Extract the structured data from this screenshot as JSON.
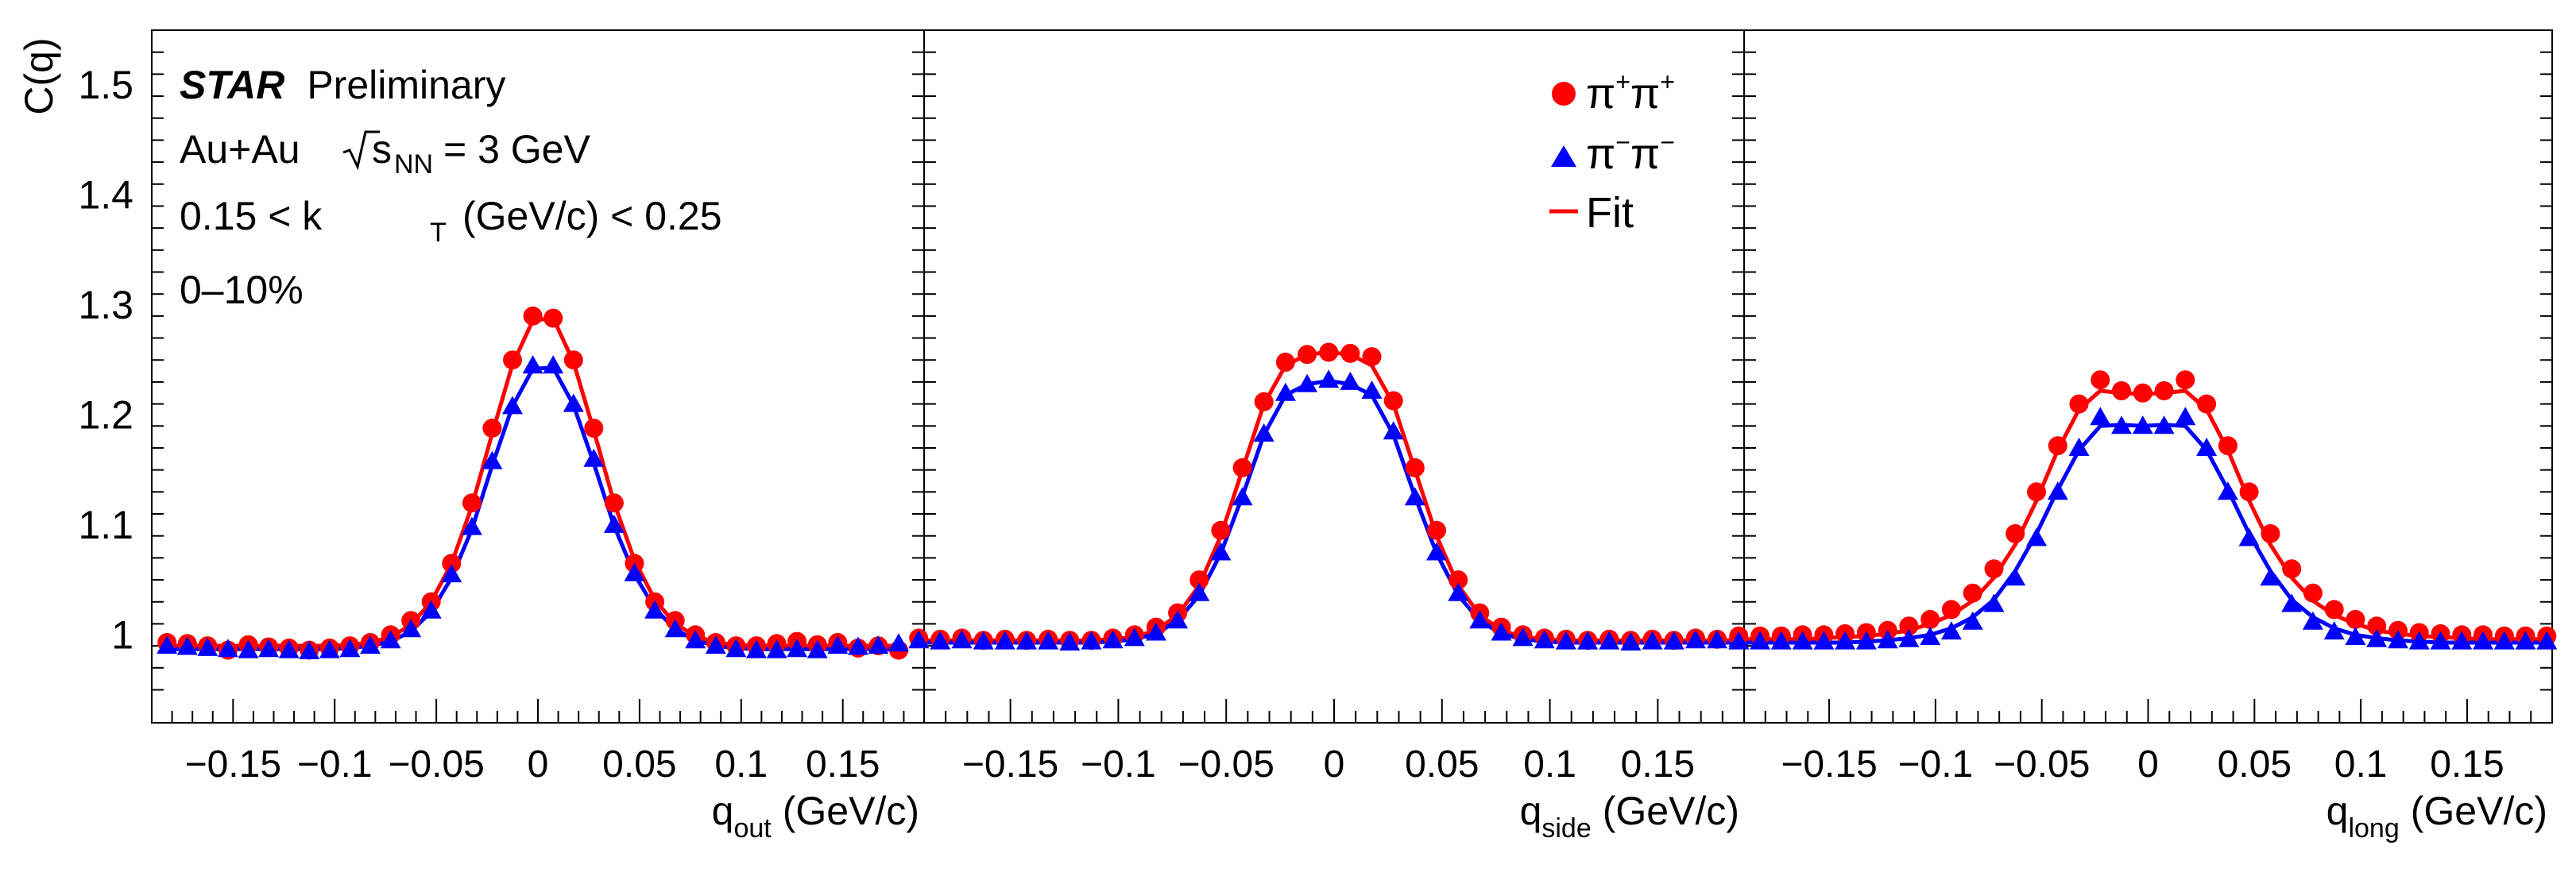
{
  "chart_data": {
    "type": "scatter",
    "ylabel": "C(q)",
    "ylim": [
      0.92,
      1.55
    ],
    "yticks_major": [
      1,
      1.1,
      1.2,
      1.3,
      1.4,
      1.5
    ],
    "ytick_labels": [
      "1",
      "1.1",
      "1.2",
      "1.3",
      "1.4",
      "1.5"
    ],
    "xlim": [
      -0.19,
      0.19
    ],
    "xticks_major": [
      -0.15,
      -0.1,
      -0.05,
      0,
      0.05,
      0.1,
      0.15
    ],
    "xtick_labels": [
      "−0.15",
      "−0.1",
      "−0.05",
      "0",
      "0.05",
      "0.1",
      "0.15"
    ],
    "annotations": {
      "experiment": "STAR",
      "status": "Preliminary",
      "system_prefix": "Au+Au",
      "sqrt_s": "s",
      "sqrt_s_sub": "NN",
      "energy": "= 3 GeV",
      "kt_prefix": "0.15 < k",
      "kt_sub": "T",
      "kt_suffix": "(GeV/c) < 0.25",
      "centrality": "0–10%"
    },
    "legend": {
      "placement": "top-right",
      "pi_plus_base": "π",
      "plus_sign": "+",
      "pi_minus_base": "π",
      "minus_sign": "−",
      "fit_label": "Fit"
    },
    "colors": {
      "pi_plus": "#ff0000",
      "pi_minus": "#0000ff"
    },
    "panels": [
      {
        "name": "out",
        "xlabel_base": "q",
        "xlabel_sub": "out",
        "xlabel_unit": "(GeV/c)",
        "x": [
          -0.1825,
          -0.1725,
          -0.1625,
          -0.1525,
          -0.1425,
          -0.1325,
          -0.1225,
          -0.1125,
          -0.1025,
          -0.0925,
          -0.0825,
          -0.0725,
          -0.0625,
          -0.0525,
          -0.0425,
          -0.0325,
          -0.0225,
          -0.0125,
          -0.0025,
          0.0075,
          0.0175,
          0.0275,
          0.0375,
          0.0475,
          0.0575,
          0.0675,
          0.0775,
          0.0875,
          0.0975,
          0.1075,
          0.1175,
          0.1275,
          0.1375,
          0.1475,
          0.1575,
          0.1675,
          0.1775
        ],
        "series": [
          {
            "name": "π+π+",
            "marker": "circle",
            "values": [
              0.993,
              0.992,
              0.99,
              0.986,
              0.991,
              0.989,
              0.988,
              0.986,
              0.988,
              0.99,
              0.993,
              1.0,
              1.013,
              1.03,
              1.065,
              1.12,
              1.188,
              1.25,
              1.29,
              1.288,
              1.25,
              1.188,
              1.12,
              1.065,
              1.03,
              1.013,
              1.0,
              0.993,
              0.99,
              0.99,
              0.992,
              0.994,
              0.991,
              0.993,
              0.988,
              0.99,
              0.986
            ],
            "fit": [
              0.99,
              0.99,
              0.99,
              0.99,
              0.99,
              0.99,
              0.99,
              0.99,
              0.99,
              0.991,
              0.993,
              0.998,
              1.009,
              1.03,
              1.065,
              1.117,
              1.183,
              1.246,
              1.286,
              1.288,
              1.248,
              1.186,
              1.12,
              1.068,
              1.032,
              1.01,
              0.999,
              0.993,
              0.991,
              0.99,
              0.99,
              0.99,
              0.99,
              0.99,
              0.99,
              0.99,
              0.99
            ]
          },
          {
            "name": "π−π−",
            "marker": "triangle",
            "values": [
              0.99,
              0.989,
              0.988,
              0.987,
              0.986,
              0.987,
              0.986,
              0.985,
              0.986,
              0.987,
              0.99,
              0.995,
              1.005,
              1.022,
              1.055,
              1.098,
              1.158,
              1.208,
              1.245,
              1.245,
              1.21,
              1.16,
              1.1,
              1.056,
              1.022,
              1.005,
              0.995,
              0.99,
              0.987,
              0.986,
              0.986,
              0.987,
              0.986,
              0.99,
              0.989,
              0.99,
              0.992
            ],
            "fit": [
              0.987,
              0.987,
              0.987,
              0.987,
              0.987,
              0.987,
              0.987,
              0.987,
              0.987,
              0.988,
              0.99,
              0.994,
              1.003,
              1.021,
              1.052,
              1.096,
              1.154,
              1.208,
              1.242,
              1.243,
              1.209,
              1.156,
              1.099,
              1.055,
              1.024,
              1.005,
              0.995,
              0.99,
              0.988,
              0.987,
              0.987,
              0.987,
              0.987,
              0.987,
              0.987,
              0.987,
              0.987
            ]
          }
        ]
      },
      {
        "name": "side",
        "xlabel_base": "q",
        "xlabel_sub": "side",
        "xlabel_unit": "(GeV/c)",
        "x": [
          -0.1925,
          -0.1825,
          -0.1725,
          -0.1625,
          -0.1525,
          -0.1425,
          -0.1325,
          -0.1225,
          -0.1125,
          -0.1025,
          -0.0925,
          -0.0825,
          -0.0725,
          -0.0625,
          -0.0525,
          -0.0425,
          -0.0325,
          -0.0225,
          -0.0125,
          -0.0025,
          0.0075,
          0.0175,
          0.0275,
          0.0375,
          0.0475,
          0.0575,
          0.0675,
          0.0775,
          0.0875,
          0.0975,
          0.1075,
          0.1175,
          0.1275,
          0.1375,
          0.1475,
          0.1575,
          0.1675,
          0.1775,
          0.1875
        ],
        "series": [
          {
            "name": "π+π+",
            "marker": "circle",
            "values": [
              0.997,
              0.996,
              0.997,
              0.995,
              0.996,
              0.995,
              0.996,
              0.995,
              0.995,
              0.997,
              1.0,
              1.007,
              1.02,
              1.05,
              1.095,
              1.152,
              1.212,
              1.248,
              1.255,
              1.257,
              1.256,
              1.253,
              1.213,
              1.152,
              1.095,
              1.05,
              1.02,
              1.007,
              1.0,
              0.997,
              0.996,
              0.995,
              0.996,
              0.995,
              0.996,
              0.995,
              0.997,
              0.996,
              0.997
            ],
            "fit": [
              0.995,
              0.995,
              0.995,
              0.995,
              0.995,
              0.995,
              0.995,
              0.995,
              0.995,
              0.996,
              0.998,
              1.004,
              1.018,
              1.045,
              1.09,
              1.15,
              1.21,
              1.245,
              1.255,
              1.257,
              1.255,
              1.245,
              1.21,
              1.15,
              1.09,
              1.045,
              1.018,
              1.004,
              0.998,
              0.996,
              0.995,
              0.995,
              0.995,
              0.995,
              0.995,
              0.995,
              0.995,
              0.995,
              0.995
            ]
          },
          {
            "name": "π−π−",
            "marker": "triangle",
            "values": [
              0.995,
              0.994,
              0.995,
              0.994,
              0.994,
              0.994,
              0.994,
              0.993,
              0.994,
              0.995,
              0.997,
              1.002,
              1.013,
              1.038,
              1.075,
              1.125,
              1.183,
              1.22,
              1.228,
              1.232,
              1.23,
              1.222,
              1.185,
              1.125,
              1.075,
              1.038,
              1.013,
              1.002,
              0.997,
              0.995,
              0.994,
              0.994,
              0.994,
              0.993,
              0.994,
              0.994,
              0.995,
              0.995,
              0.996
            ],
            "fit": [
              0.993,
              0.993,
              0.993,
              0.993,
              0.993,
              0.993,
              0.993,
              0.993,
              0.993,
              0.994,
              0.996,
              1.001,
              1.013,
              1.036,
              1.074,
              1.126,
              1.182,
              1.218,
              1.228,
              1.231,
              1.228,
              1.218,
              1.182,
              1.126,
              1.074,
              1.036,
              1.013,
              1.001,
              0.996,
              0.994,
              0.993,
              0.993,
              0.993,
              0.993,
              0.993,
              0.993,
              0.993,
              0.993,
              0.993
            ]
          }
        ]
      },
      {
        "name": "long",
        "xlabel_base": "q",
        "xlabel_sub": "long",
        "xlabel_unit": "(GeV/c)",
        "x": [
          -0.1925,
          -0.1825,
          -0.1725,
          -0.1625,
          -0.1525,
          -0.1425,
          -0.1325,
          -0.1225,
          -0.1125,
          -0.1025,
          -0.0925,
          -0.0825,
          -0.0725,
          -0.0625,
          -0.0525,
          -0.0425,
          -0.0325,
          -0.0225,
          -0.0125,
          -0.0025,
          0.0075,
          0.0175,
          0.0275,
          0.0375,
          0.0475,
          0.0575,
          0.0675,
          0.0775,
          0.0875,
          0.0975,
          0.1075,
          0.1175,
          0.1275,
          0.1375,
          0.1475,
          0.1575,
          0.1675,
          0.1775,
          0.1875
        ],
        "series": [
          {
            "name": "π+π+",
            "marker": "circle",
            "values": [
              0.999,
              0.999,
              0.999,
              1.0,
              1.0,
              1.001,
              1.002,
              1.004,
              1.008,
              1.014,
              1.023,
              1.038,
              1.06,
              1.092,
              1.13,
              1.172,
              1.21,
              1.232,
              1.222,
              1.22,
              1.222,
              1.232,
              1.21,
              1.172,
              1.13,
              1.092,
              1.06,
              1.038,
              1.023,
              1.014,
              1.008,
              1.004,
              1.002,
              1.001,
              1.0,
              1.0,
              0.999,
              0.999,
              0.999
            ],
            "fit": [
              0.996,
              0.996,
              0.996,
              0.996,
              0.997,
              0.998,
              0.999,
              1.001,
              1.004,
              1.01,
              1.018,
              1.031,
              1.052,
              1.082,
              1.122,
              1.168,
              1.205,
              1.222,
              1.22,
              1.219,
              1.22,
              1.222,
              1.205,
              1.168,
              1.122,
              1.082,
              1.052,
              1.031,
              1.018,
              1.01,
              1.004,
              1.001,
              0.999,
              0.998,
              0.997,
              0.996,
              0.996,
              0.996,
              0.996
            ]
          },
          {
            "name": "π−π−",
            "marker": "triangle",
            "values": [
              0.994,
              0.994,
              0.994,
              0.994,
              0.994,
              0.994,
              0.994,
              0.995,
              0.996,
              0.998,
              1.003,
              1.012,
              1.028,
              1.052,
              1.088,
              1.13,
              1.17,
              1.198,
              1.19,
              1.19,
              1.19,
              1.198,
              1.17,
              1.13,
              1.088,
              1.052,
              1.028,
              1.012,
              1.003,
              0.998,
              0.996,
              0.995,
              0.994,
              0.994,
              0.994,
              0.994,
              0.994,
              0.994,
              0.994
            ],
            "fit": [
              0.993,
              0.993,
              0.993,
              0.993,
              0.993,
              0.993,
              0.994,
              0.995,
              0.997,
              1.0,
              1.006,
              1.016,
              1.032,
              1.058,
              1.092,
              1.132,
              1.168,
              1.19,
              1.191,
              1.19,
              1.191,
              1.19,
              1.168,
              1.132,
              1.092,
              1.058,
              1.032,
              1.016,
              1.006,
              1.0,
              0.997,
              0.995,
              0.994,
              0.993,
              0.993,
              0.993,
              0.993,
              0.993,
              0.993
            ]
          }
        ]
      }
    ]
  }
}
